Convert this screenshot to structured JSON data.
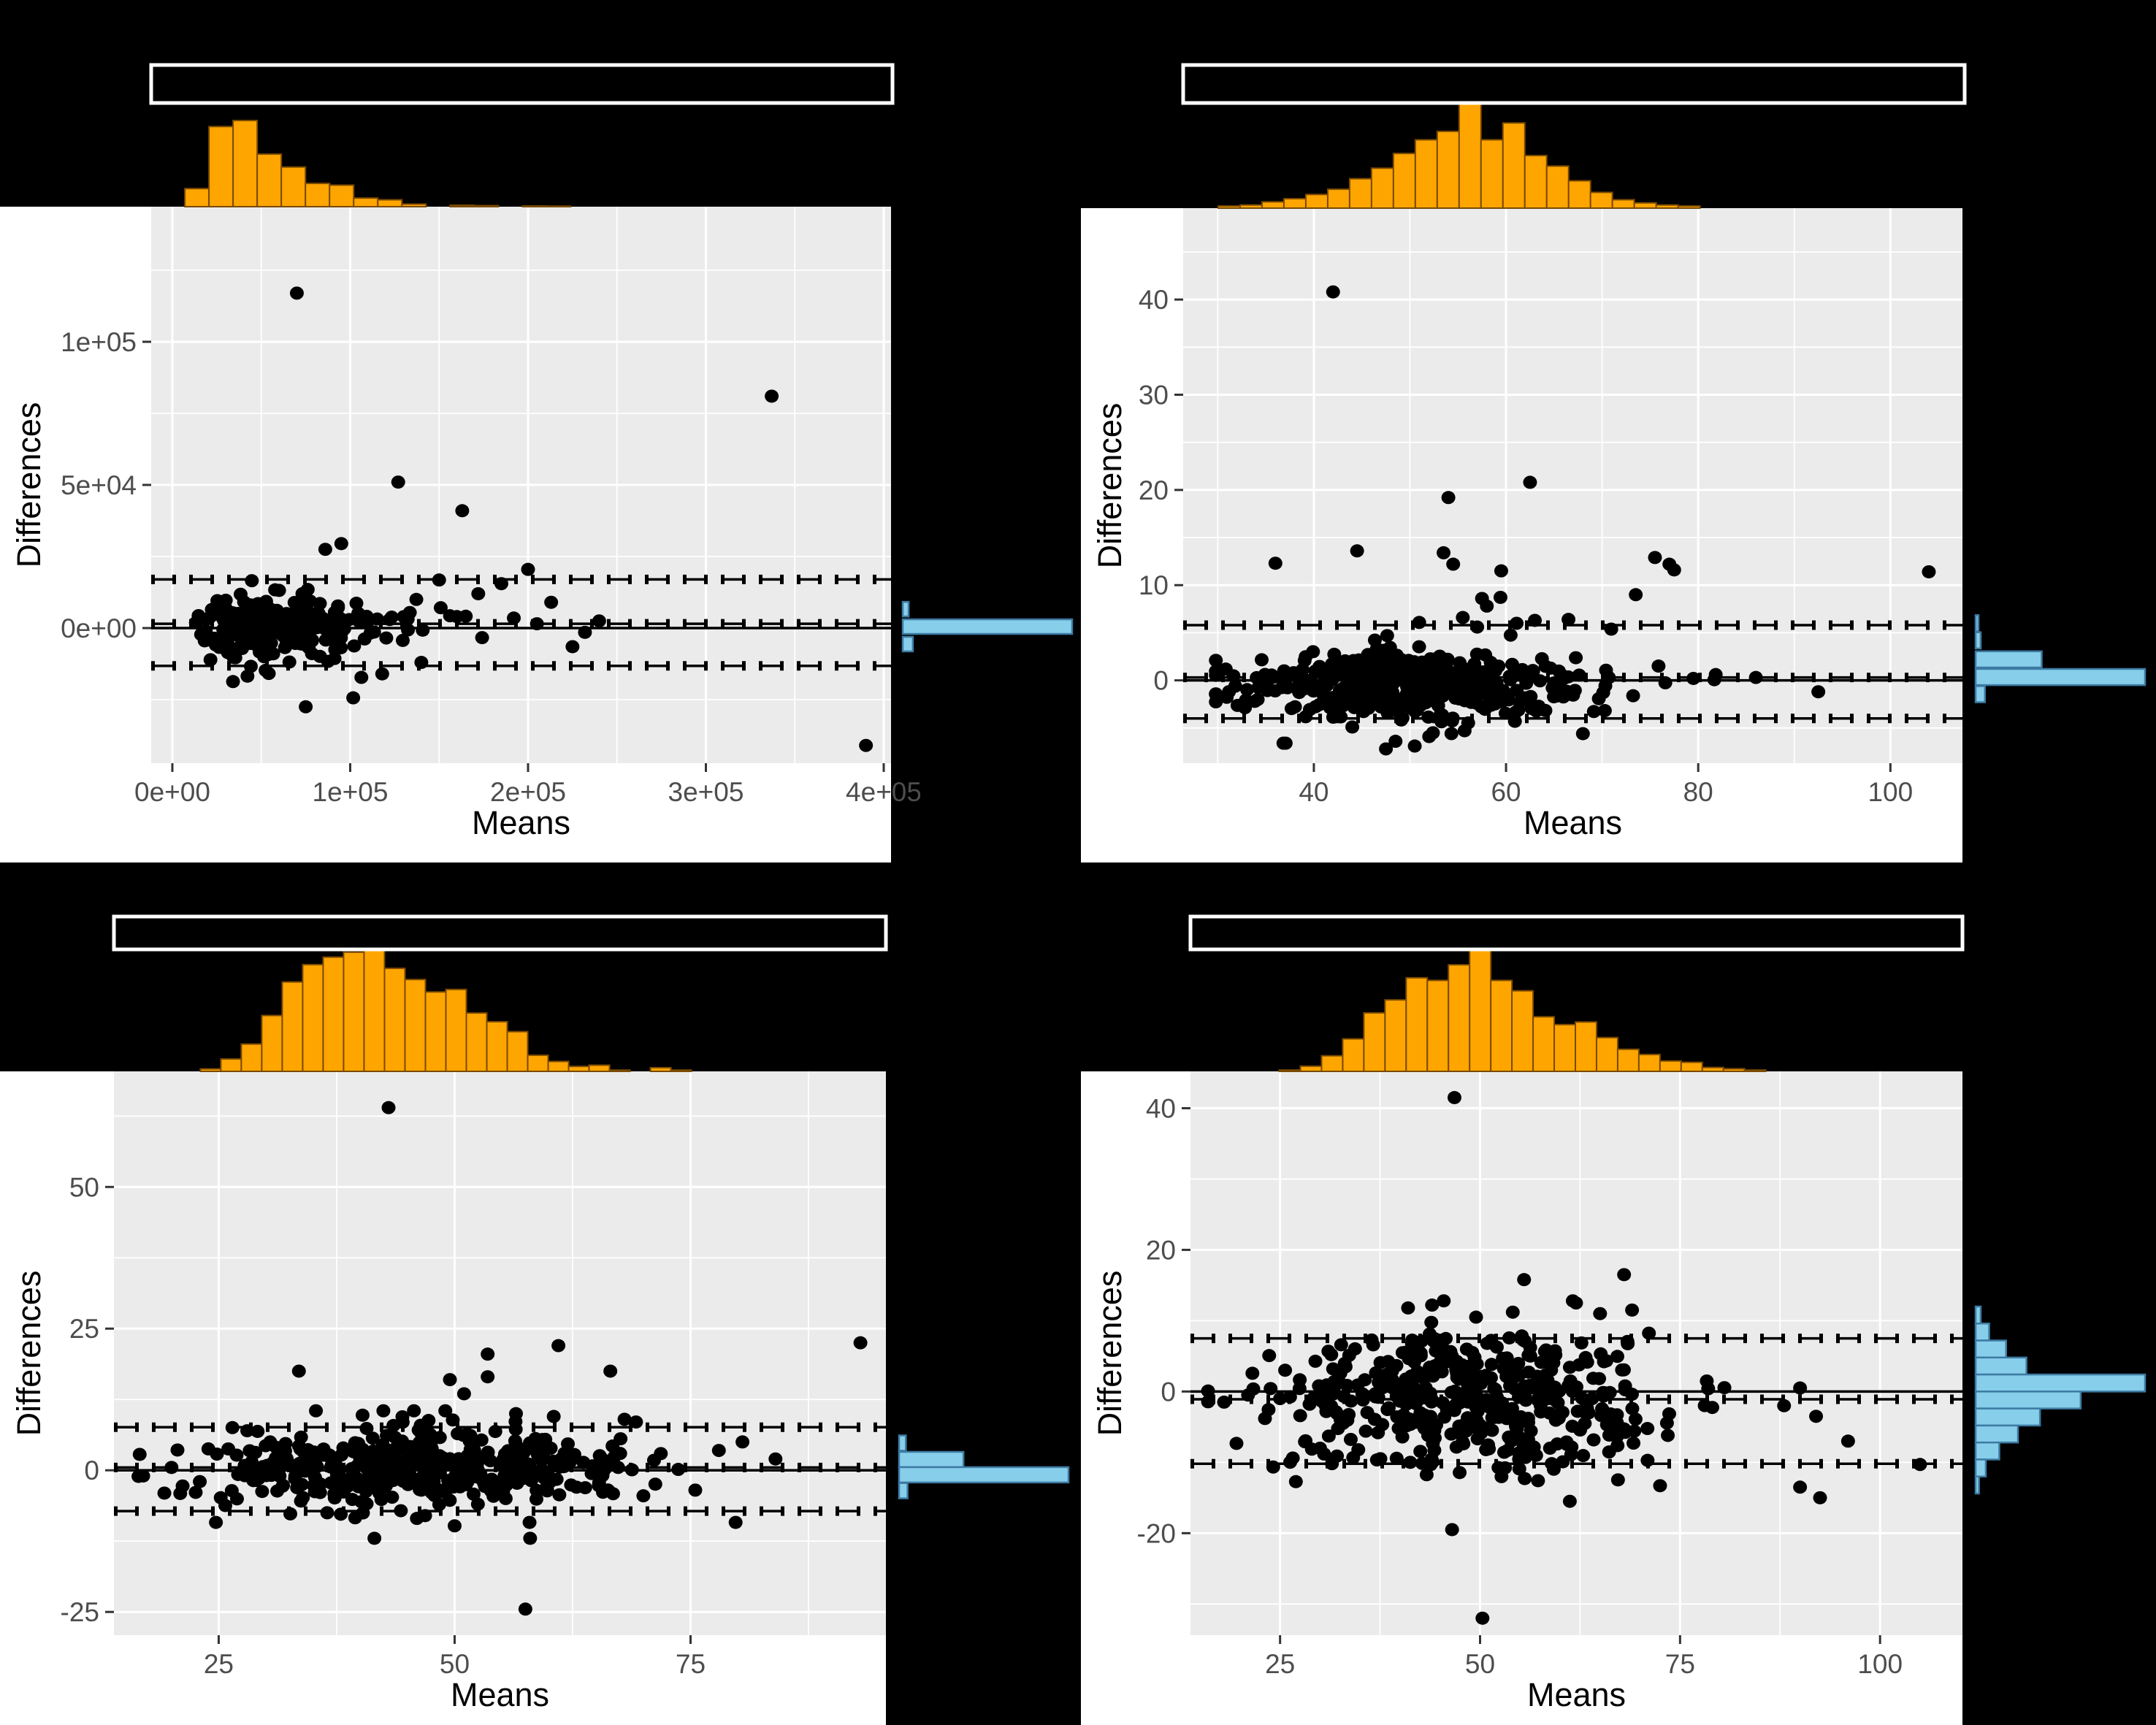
{
  "figure": {
    "background": "#000000",
    "panel_background": "#EBEBEB",
    "grid_color": "#FFFFFF",
    "tick_label_color": "#4D4D4D",
    "axis_title_color": "#000000",
    "tick_mark_color": "#333333",
    "point_color": "#000000",
    "line_color": "#000000",
    "top_hist_fill": "#FFA500",
    "top_hist_stroke": "#7A4A00",
    "right_hist_fill": "#87CEEB",
    "right_hist_stroke": "#3D7BA3",
    "title_box_fill": "#000000",
    "title_box_stroke": "#FFFFFF"
  },
  "chart_data": [
    {
      "name": "bland-altman-top-left",
      "type": "scatter",
      "xlabel": "Means",
      "ylabel": "Differences",
      "xlim": [
        -11900,
        404100
      ],
      "ylim": [
        -47200,
        147200
      ],
      "xticks": [
        {
          "v": 0,
          "label": "0e+00"
        },
        {
          "v": 100000,
          "label": "1e+05"
        },
        {
          "v": 200000,
          "label": "2e+05"
        },
        {
          "v": 300000,
          "label": "3e+05"
        },
        {
          "v": 400000,
          "label": "4e+05"
        }
      ],
      "yticks": [
        {
          "v": 0,
          "label": "0e+00"
        },
        {
          "v": 50000,
          "label": "5e+04"
        },
        {
          "v": 100000,
          "label": "1e+05"
        }
      ],
      "x_minor": [
        50000,
        150000,
        250000,
        350000
      ],
      "y_minor": [
        -25000,
        25000,
        75000,
        125000
      ],
      "lines": {
        "solid_zero": 0,
        "bias_dashed": 1500,
        "loa_upper": 17000,
        "loa_lower": -13200
      },
      "top_hist": {
        "start_frac": 0.0455,
        "bin_frac": 0.0326,
        "heights": [
          0.21,
          0.93,
          1.0,
          0.61,
          0.46,
          0.27,
          0.25,
          0.1,
          0.08,
          0.03,
          0,
          0.017,
          0.012,
          0,
          0.008,
          0.006
        ]
      },
      "right_hist": {
        "bin_size": 5100,
        "bins": [
          {
            "y": 6600,
            "h": 0.035
          },
          {
            "y": 500,
            "h": 1.0
          },
          {
            "y": -5600,
            "h": 0.06
          }
        ]
      },
      "cloud": {
        "seed": 101,
        "n": 300,
        "x_dist": "lognormal",
        "x_mu": 10.95,
        "x_sigma": 0.5,
        "x_clip": [
          9000,
          232000
        ],
        "y_mean": 600,
        "y_sd": 5000,
        "y_tail_frac": 0.1,
        "y_tail_mult": 2.4,
        "y_clip": [
          -26000,
          27000
        ]
      },
      "outliers": [
        [
          70000,
          117000
        ],
        [
          337000,
          81000
        ],
        [
          127000,
          51000
        ],
        [
          163000,
          41000
        ],
        [
          95000,
          29500
        ],
        [
          86000,
          27500
        ],
        [
          75000,
          -27500
        ],
        [
          390000,
          -41000
        ],
        [
          150000,
          16800
        ],
        [
          185000,
          15500
        ],
        [
          200000,
          20500
        ],
        [
          213000,
          9000
        ],
        [
          225000,
          -6500
        ],
        [
          172000,
          12000
        ],
        [
          160000,
          4000
        ],
        [
          192000,
          3500
        ],
        [
          205000,
          1500
        ],
        [
          240000,
          2500
        ],
        [
          140000,
          -12000
        ],
        [
          118000,
          -16000
        ]
      ],
      "layout": {
        "ox": 0,
        "oy": 0,
        "qw": 1480,
        "qh": 1181,
        "panel": [
          207,
          283,
          1220,
          1045
        ],
        "title_box": [
          207,
          89,
          1222,
          141
        ],
        "top_hist_max": 118,
        "right_hist_x0": 1236,
        "right_hist_max_len": 232
      }
    },
    {
      "name": "bland-altman-top-right",
      "type": "scatter",
      "xlabel": "Means",
      "ylabel": "Differences",
      "xlim": [
        26.4,
        107.5
      ],
      "ylim": [
        -8.7,
        49.6
      ],
      "xticks": [
        {
          "v": 40,
          "label": "40"
        },
        {
          "v": 60,
          "label": "60"
        },
        {
          "v": 80,
          "label": "80"
        },
        {
          "v": 100,
          "label": "100"
        }
      ],
      "yticks": [
        {
          "v": 0,
          "label": "0"
        },
        {
          "v": 10,
          "label": "10"
        },
        {
          "v": 20,
          "label": "20"
        },
        {
          "v": 30,
          "label": "30"
        },
        {
          "v": 40,
          "label": "40"
        }
      ],
      "x_minor": [
        30,
        50,
        70,
        90
      ],
      "y_minor": [
        -5,
        5,
        15,
        25,
        35,
        45
      ],
      "lines": {
        "solid_zero": 0,
        "bias_dashed": 0.3,
        "loa_upper": 5.8,
        "loa_lower": -4.0
      },
      "top_hist": {
        "start_frac": 0.045,
        "bin_frac": 0.0281,
        "heights": [
          0.02,
          0.03,
          0.06,
          0.09,
          0.13,
          0.18,
          0.28,
          0.38,
          0.52,
          0.65,
          0.73,
          1.0,
          0.65,
          0.81,
          0.5,
          0.4,
          0.26,
          0.15,
          0.08,
          0.05,
          0.03,
          0.02
        ]
      },
      "right_hist": {
        "bin_size": 1.7,
        "bins": [
          {
            "y": 6.0,
            "h": 0.012
          },
          {
            "y": 4.2,
            "h": 0.03
          },
          {
            "y": 2.2,
            "h": 0.39
          },
          {
            "y": 0.35,
            "h": 1.0
          },
          {
            "y": -1.45,
            "h": 0.055
          }
        ]
      },
      "cloud": {
        "seed": 202,
        "n": 430,
        "x_dist": "normal",
        "x_mean": 51,
        "x_sd": 9.2,
        "x_clip": [
          29.8,
          93
        ],
        "y_mean": -0.4,
        "y_sd": 1.65,
        "y_tail_frac": 0.08,
        "y_tail_mult": 2.4,
        "y_clip": [
          -6.6,
          8.8
        ]
      },
      "outliers": [
        [
          42,
          40.8
        ],
        [
          62.5,
          20.8
        ],
        [
          54,
          19.2
        ],
        [
          44.5,
          13.6
        ],
        [
          36,
          12.3
        ],
        [
          53.5,
          13.4
        ],
        [
          54.5,
          12.2
        ],
        [
          59.5,
          11.5
        ],
        [
          75.5,
          12.9
        ],
        [
          77,
          12.2
        ],
        [
          77.5,
          11.6
        ],
        [
          104,
          11.4
        ],
        [
          73.5,
          9.0
        ],
        [
          57.5,
          8.6
        ],
        [
          58,
          7.8
        ],
        [
          55.5,
          6.6
        ],
        [
          63,
          6.3
        ],
        [
          66.5,
          6.4
        ],
        [
          57,
          5.6
        ],
        [
          86,
          0.3
        ],
        [
          79.5,
          0.2
        ],
        [
          92.5,
          -1.2
        ],
        [
          68,
          -5.6
        ],
        [
          48.5,
          -6.4
        ],
        [
          52,
          -5.9
        ],
        [
          44,
          -4.9
        ],
        [
          47.5,
          -7.2
        ],
        [
          50.5,
          -6.9
        ]
      ],
      "layout": {
        "ox": 1480,
        "oy": 0,
        "qw": 1472,
        "qh": 1181,
        "panel": [
          140,
          285,
          1207,
          1045
        ],
        "title_box": [
          140,
          89,
          1210,
          141
        ],
        "top_hist_max": 144,
        "right_hist_x0": 1225,
        "right_hist_max_len": 232
      }
    },
    {
      "name": "bland-altman-bottom-left",
      "type": "scatter",
      "xlabel": "Means",
      "ylabel": "Differences",
      "xlim": [
        13.9,
        95.7
      ],
      "ylim": [
        -29.1,
        70.4
      ],
      "xticks": [
        {
          "v": 25,
          "label": "25"
        },
        {
          "v": 50,
          "label": "50"
        },
        {
          "v": 75,
          "label": "75"
        }
      ],
      "yticks": [
        {
          "v": -25,
          "label": "-25"
        },
        {
          "v": 0,
          "label": "0"
        },
        {
          "v": 25,
          "label": "25"
        },
        {
          "v": 50,
          "label": "50"
        }
      ],
      "x_minor": [
        37.5,
        62.5,
        87.5
      ],
      "y_minor": [
        -12.5,
        12.5,
        37.5,
        62.5
      ],
      "lines": {
        "solid_zero": 0,
        "bias_dashed": 0.5,
        "loa_upper": 7.6,
        "loa_lower": -7.2
      },
      "top_hist": {
        "start_frac": 0.112,
        "bin_frac": 0.0265,
        "heights": [
          0.02,
          0.1,
          0.22,
          0.45,
          0.72,
          0.86,
          0.92,
          0.96,
          1.0,
          0.83,
          0.74,
          0.64,
          0.66,
          0.47,
          0.4,
          0.32,
          0.13,
          0.08,
          0.04,
          0.05,
          0.01,
          0,
          0.03,
          0.01
        ]
      },
      "right_hist": {
        "bin_size": 2.7,
        "bins": [
          {
            "y": 4.8,
            "h": 0.04
          },
          {
            "y": 1.9,
            "h": 0.38
          },
          {
            "y": -0.8,
            "h": 1.0
          },
          {
            "y": -3.6,
            "h": 0.05
          }
        ]
      },
      "cloud": {
        "seed": 303,
        "n": 430,
        "x_dist": "normal",
        "x_mean": 46.5,
        "x_sd": 11,
        "x_clip": [
          16.5,
          94
        ],
        "y_mean": 0.1,
        "y_sd": 3.1,
        "y_tail_frac": 0.08,
        "y_tail_mult": 2.2,
        "y_clip": [
          -9.2,
          10.5
        ]
      },
      "outliers": [
        [
          43,
          64
        ],
        [
          57.5,
          -24.5
        ],
        [
          93,
          22.5
        ],
        [
          61,
          22
        ],
        [
          53.5,
          20.5
        ],
        [
          33.5,
          17.5
        ],
        [
          66.5,
          17.5
        ],
        [
          49.5,
          16
        ],
        [
          53.5,
          16.5
        ],
        [
          51,
          13.5
        ],
        [
          58,
          -12
        ],
        [
          41.5,
          -12
        ],
        [
          56.5,
          10
        ],
        [
          60.5,
          9.5
        ],
        [
          44.5,
          8.5
        ],
        [
          68,
          9
        ],
        [
          80.5,
          5
        ],
        [
          78,
          3.5
        ],
        [
          84,
          2
        ],
        [
          75.5,
          -3.5
        ],
        [
          70,
          -4.5
        ],
        [
          46,
          -8.5
        ],
        [
          36.5,
          -7.5
        ],
        [
          50,
          -9.8
        ],
        [
          17,
          -1
        ],
        [
          20,
          0.5
        ],
        [
          23,
          -2
        ]
      ],
      "layout": {
        "ox": 0,
        "oy": 1181,
        "qw": 1480,
        "qh": 1181,
        "panel": [
          156,
          286,
          1213,
          1058
        ],
        "title_box": [
          156,
          74,
          1213,
          119
        ],
        "top_hist_max": 170,
        "right_hist_x0": 1231,
        "right_hist_max_len": 232
      }
    },
    {
      "name": "bland-altman-bottom-right",
      "type": "scatter",
      "xlabel": "Means",
      "ylabel": "Differences",
      "xlim": [
        13.8,
        110.3
      ],
      "ylim": [
        -34.4,
        45.2
      ],
      "xticks": [
        {
          "v": 25,
          "label": "25"
        },
        {
          "v": 50,
          "label": "50"
        },
        {
          "v": 75,
          "label": "75"
        },
        {
          "v": 100,
          "label": "100"
        }
      ],
      "yticks": [
        {
          "v": -20,
          "label": "-20"
        },
        {
          "v": 0,
          "label": "0"
        },
        {
          "v": 20,
          "label": "20"
        },
        {
          "v": 40,
          "label": "40"
        }
      ],
      "x_minor": [
        37.5,
        62.5,
        87.5
      ],
      "y_minor": [
        -30,
        -10,
        10,
        30
      ],
      "lines": {
        "solid_zero": 0,
        "bias_dashed": -1.1,
        "loa_upper": 7.5,
        "loa_lower": -10.2
      },
      "top_hist": {
        "start_frac": 0.115,
        "bin_frac": 0.0274,
        "heights": [
          0.01,
          0.04,
          0.12,
          0.25,
          0.45,
          0.55,
          0.72,
          0.7,
          0.82,
          1.0,
          0.7,
          0.62,
          0.42,
          0.36,
          0.38,
          0.26,
          0.17,
          0.13,
          0.08,
          0.07,
          0.03,
          0.02,
          0.01
        ]
      },
      "right_hist": {
        "bin_size": 2.4,
        "bins": [
          {
            "y": 10.8,
            "h": 0.03
          },
          {
            "y": 8.4,
            "h": 0.08
          },
          {
            "y": 6.0,
            "h": 0.18
          },
          {
            "y": 3.6,
            "h": 0.3
          },
          {
            "y": 1.2,
            "h": 1.0
          },
          {
            "y": -1.2,
            "h": 0.62
          },
          {
            "y": -3.6,
            "h": 0.38
          },
          {
            "y": -6.0,
            "h": 0.25
          },
          {
            "y": -8.4,
            "h": 0.14
          },
          {
            "y": -10.8,
            "h": 0.06
          },
          {
            "y": -13.2,
            "h": 0.02
          }
        ]
      },
      "cloud": {
        "seed": 404,
        "n": 460,
        "x_dist": "normal",
        "x_mean": 49,
        "x_sd": 12.5,
        "x_clip": [
          16,
          96
        ],
        "y_mean": -1.3,
        "y_sd": 4.8,
        "y_tail_frac": 0.06,
        "y_tail_mult": 1.7,
        "y_clip": [
          -15.5,
          12.8
        ]
      },
      "outliers": [
        [
          46.8,
          41.5
        ],
        [
          50.3,
          -32
        ],
        [
          68,
          16.5
        ],
        [
          55.5,
          15.8
        ],
        [
          46.5,
          -19.5
        ],
        [
          90,
          -13.5
        ],
        [
          92.5,
          -15
        ],
        [
          105,
          -10.3
        ],
        [
          72.5,
          -13.3
        ],
        [
          62,
          12.5
        ],
        [
          44,
          12.2
        ],
        [
          41,
          11.8
        ],
        [
          49.5,
          10.5
        ],
        [
          65,
          11
        ],
        [
          69,
          11.5
        ],
        [
          90,
          0.5
        ],
        [
          92,
          -3.5
        ],
        [
          88,
          -2
        ],
        [
          96,
          -7
        ],
        [
          30,
          -8
        ],
        [
          25,
          -1
        ],
        [
          21,
          -0.5
        ],
        [
          18,
          -1.5
        ]
      ],
      "layout": {
        "ox": 1480,
        "oy": 1181,
        "qw": 1472,
        "qh": 1181,
        "panel": [
          150,
          286,
          1207,
          1058
        ],
        "title_box": [
          150,
          74,
          1207,
          119
        ],
        "top_hist_max": 178,
        "right_hist_x0": 1225,
        "right_hist_max_len": 232
      }
    }
  ]
}
